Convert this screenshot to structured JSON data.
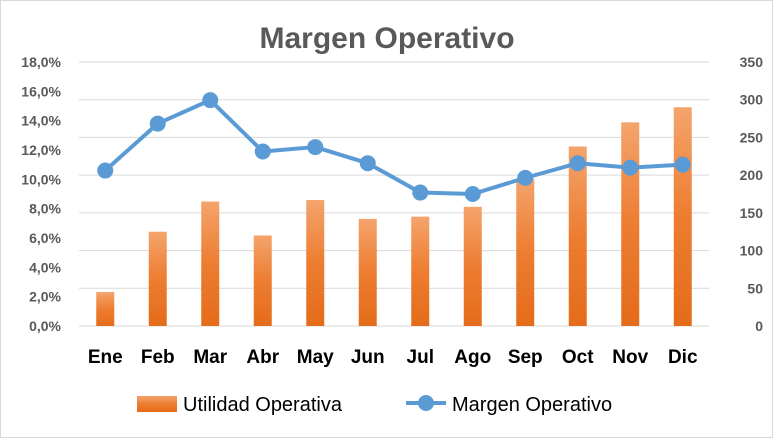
{
  "chart_data": {
    "type": "bar+line",
    "title": "Margen Operativo",
    "categories": [
      "Ene",
      "Feb",
      "Mar",
      "Abr",
      "May",
      "Jun",
      "Jul",
      "Ago",
      "Sep",
      "Oct",
      "Nov",
      "Dic"
    ],
    "series": [
      {
        "name": "Utilidad Operativa",
        "type": "bar",
        "axis": "right",
        "color": "#ed7d31",
        "values": [
          45,
          125,
          165,
          120,
          167,
          142,
          145,
          158,
          195,
          238,
          270,
          290
        ]
      },
      {
        "name": "Margen Operativo",
        "type": "line",
        "axis": "left",
        "color": "#5b9bd5",
        "values": [
          10.6,
          13.8,
          15.4,
          11.9,
          12.2,
          11.1,
          9.1,
          9.0,
          10.1,
          11.1,
          10.8,
          11.0
        ]
      }
    ],
    "y_left": {
      "range": [
        0,
        18
      ],
      "ticks": [
        "0,0%",
        "2,0%",
        "4,0%",
        "6,0%",
        "8,0%",
        "10,0%",
        "12,0%",
        "14,0%",
        "16,0%",
        "18,0%"
      ]
    },
    "y_right": {
      "range": [
        0,
        350
      ],
      "ticks": [
        "0",
        "50",
        "100",
        "150",
        "200",
        "250",
        "300",
        "350"
      ]
    },
    "grid": true,
    "legend_position": "bottom"
  }
}
